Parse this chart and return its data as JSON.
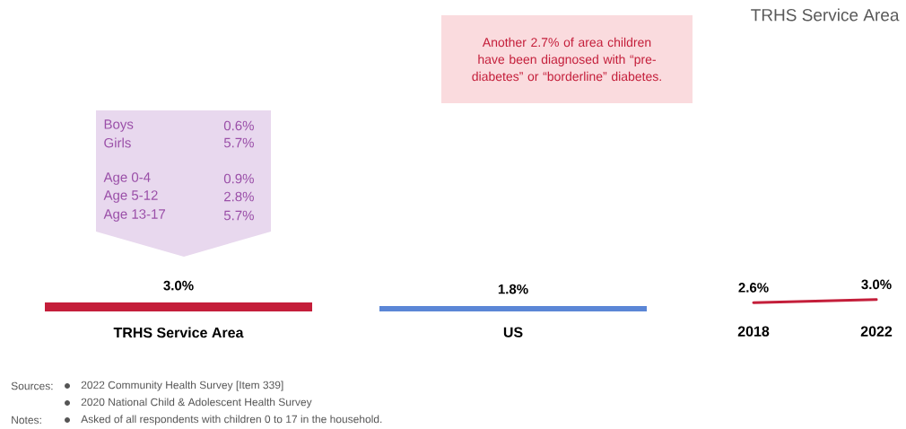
{
  "chart_data": [
    {
      "type": "bar",
      "categories": [
        "TRHS Service Area",
        "US"
      ],
      "values": [
        3.0,
        1.8
      ],
      "colors": [
        "#c41e3a",
        "#5b86d6"
      ],
      "value_labels": [
        "3.0%",
        "1.8%"
      ],
      "annotations": [
        "Another 2.7% of area children have been diagnosed with “pre-diabetes” or “borderline” diabetes.",
        "Boys",
        "0.6%",
        "Girls",
        "5.7%",
        "Age 0-4",
        "0.9%",
        "Age 5-12",
        "2.8%",
        "Age 13-17",
        "5.7%",
        "Sources:",
        "2022 Community Health Survey [Item 339]",
        "2020 National Child & Adolescent Health Survey",
        "Notes:",
        "Asked of all respondents with children 0 to 17 in the household."
      ]
    },
    {
      "type": "line",
      "title": "TRHS Service Area",
      "categories": [
        "2018",
        "2022"
      ],
      "values": [
        2.6,
        3.0
      ],
      "color": "#c41e3a",
      "value_labels": [
        "2.6%",
        "3.0%"
      ]
    }
  ]
}
